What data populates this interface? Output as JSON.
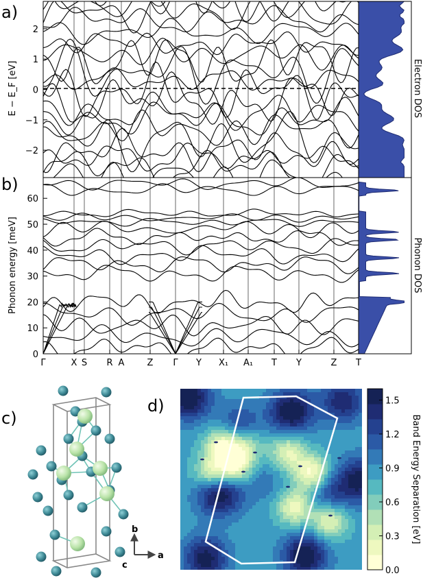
{
  "panels": {
    "a": {
      "label": "a)"
    },
    "b": {
      "label": "b)"
    },
    "c": {
      "label": "c)"
    },
    "d": {
      "label": "d)"
    }
  },
  "chart_data": [
    {
      "type": "line",
      "panel": "a",
      "ylabel": "E − E_F [eV]",
      "ylim": [
        -2.9,
        2.9
      ],
      "yticks": [
        -2,
        -1,
        0,
        1,
        2
      ],
      "x_ticks": [
        "Γ",
        "X",
        "S",
        "R",
        "A",
        "Z",
        "Γ",
        "Y",
        "X1",
        "A1",
        "T",
        "Y",
        "Z",
        "T"
      ],
      "fermi_level": 0,
      "fermi_style": "dashed",
      "series_note": "many electronic bands crossing the Fermi level"
    },
    {
      "type": "area",
      "panel": "a-dos",
      "side_label": "Electron DOS",
      "color": "#3a4fa8"
    },
    {
      "type": "line",
      "panel": "b",
      "ylabel": "Phonon energy [meV]",
      "ylim": [
        0,
        68
      ],
      "yticks": [
        0,
        10,
        20,
        30,
        40,
        50,
        60
      ],
      "x_tick_labels": [
        "Γ",
        "X",
        "S",
        "R",
        "A",
        "Z",
        "Γ",
        "Y",
        "X₁",
        "A₁",
        "T",
        "Y",
        "Z",
        "T"
      ],
      "band_groups_meV": [
        [
          0,
          22
        ],
        [
          29,
          40
        ],
        [
          40,
          50
        ],
        [
          50,
          55
        ],
        [
          62,
          67
        ]
      ]
    },
    {
      "type": "area",
      "panel": "b-dos",
      "side_label": "Phonon DOS",
      "color": "#3a4fa8",
      "peaks_meV": [
        20,
        31,
        37,
        44,
        47,
        63
      ]
    },
    {
      "type": "heatmap",
      "panel": "d",
      "colorbar_label": "Band Energy Separation [eV]",
      "colorbar_ticks": [
        "0.0",
        "0.3",
        "0.6",
        "0.9",
        "1.2",
        "1.5"
      ],
      "colorbar_range": [
        0,
        1.6
      ],
      "colormap": [
        "#ffffd6",
        "#eef8bf",
        "#d4efb5",
        "#b1e0b6",
        "#82cdbb",
        "#56b9c0",
        "#3d9cc2",
        "#337ab7",
        "#2b5aa6",
        "#24418f",
        "#1f2c73",
        "#152255"
      ]
    }
  ],
  "structure": {
    "axes": {
      "b": "b",
      "a": "a",
      "c": "c"
    },
    "atom_large_color": "#b9e3a8",
    "atom_small_color": "#3f8a96"
  }
}
